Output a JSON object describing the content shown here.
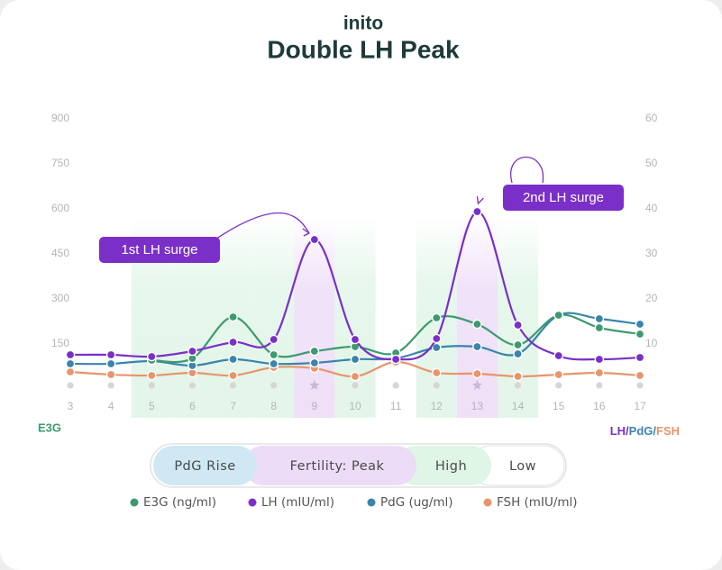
{
  "brand": "inito",
  "chart_data": {
    "type": "line",
    "title": "Double LH Peak",
    "categories": [
      "3",
      "4",
      "5",
      "6",
      "7",
      "8",
      "9",
      "10",
      "11",
      "12",
      "13",
      "14",
      "15",
      "16",
      "17"
    ],
    "ylabel": "E3G",
    "y2label_parts": [
      "LH/",
      "PdG/",
      "FSH"
    ],
    "ylim": [
      0,
      900
    ],
    "yticks": [
      150,
      300,
      450,
      600,
      750,
      900
    ],
    "y2lim": [
      0,
      60
    ],
    "y2ticks": [
      10,
      20,
      30,
      40,
      50,
      60
    ],
    "grid": false,
    "series": [
      {
        "name": "E3G (ng/ml)",
        "color": "#3d9a70",
        "values": [
          null,
          null,
          96,
          102,
          240,
          114,
          126,
          141,
          120,
          237,
          216,
          147,
          246,
          204,
          183
        ]
      },
      {
        "name": "LH (mIU/ml)",
        "color": "#7a2fc8",
        "axis": "y2",
        "values": [
          7.6,
          7.6,
          7.2,
          8.4,
          10.4,
          11,
          33.2,
          11,
          6.6,
          11.2,
          39.4,
          14.2,
          7.4,
          6.6,
          7
        ]
      },
      {
        "name": "PdG (ug/ml)",
        "color": "#3a84ad",
        "axis": "y2",
        "values": [
          5.6,
          5.6,
          6.2,
          5.2,
          6.6,
          5.6,
          5.8,
          6.6,
          6.8,
          9.2,
          9.4,
          7.8,
          16.4,
          15.6,
          14.4
        ]
      },
      {
        "name": "FSH (mIU/ml)",
        "color": "#e8956b",
        "axis": "y2",
        "values": [
          3.8,
          3.2,
          3,
          3.6,
          3,
          4.8,
          4.6,
          2.8,
          6,
          3.6,
          3.4,
          2.8,
          3.2,
          3.6,
          3
        ]
      }
    ],
    "annotations": [
      {
        "text": "1st LH surge",
        "series": 1,
        "index": 6
      },
      {
        "text": "2nd LH surge",
        "series": 1,
        "index": 10
      }
    ],
    "phase_legend": [
      {
        "label": "PdG Rise",
        "color": "#cfe8f4"
      },
      {
        "label": "Fertility: Peak",
        "color": "#ecdcf7"
      },
      {
        "label": "High",
        "color": "#dff5e6"
      },
      {
        "label": "Low",
        "color": "#ffffff"
      }
    ],
    "day_phase": [
      3,
      3,
      2,
      2,
      2,
      2,
      1,
      2,
      3,
      2,
      1,
      2,
      3,
      3,
      3
    ]
  }
}
